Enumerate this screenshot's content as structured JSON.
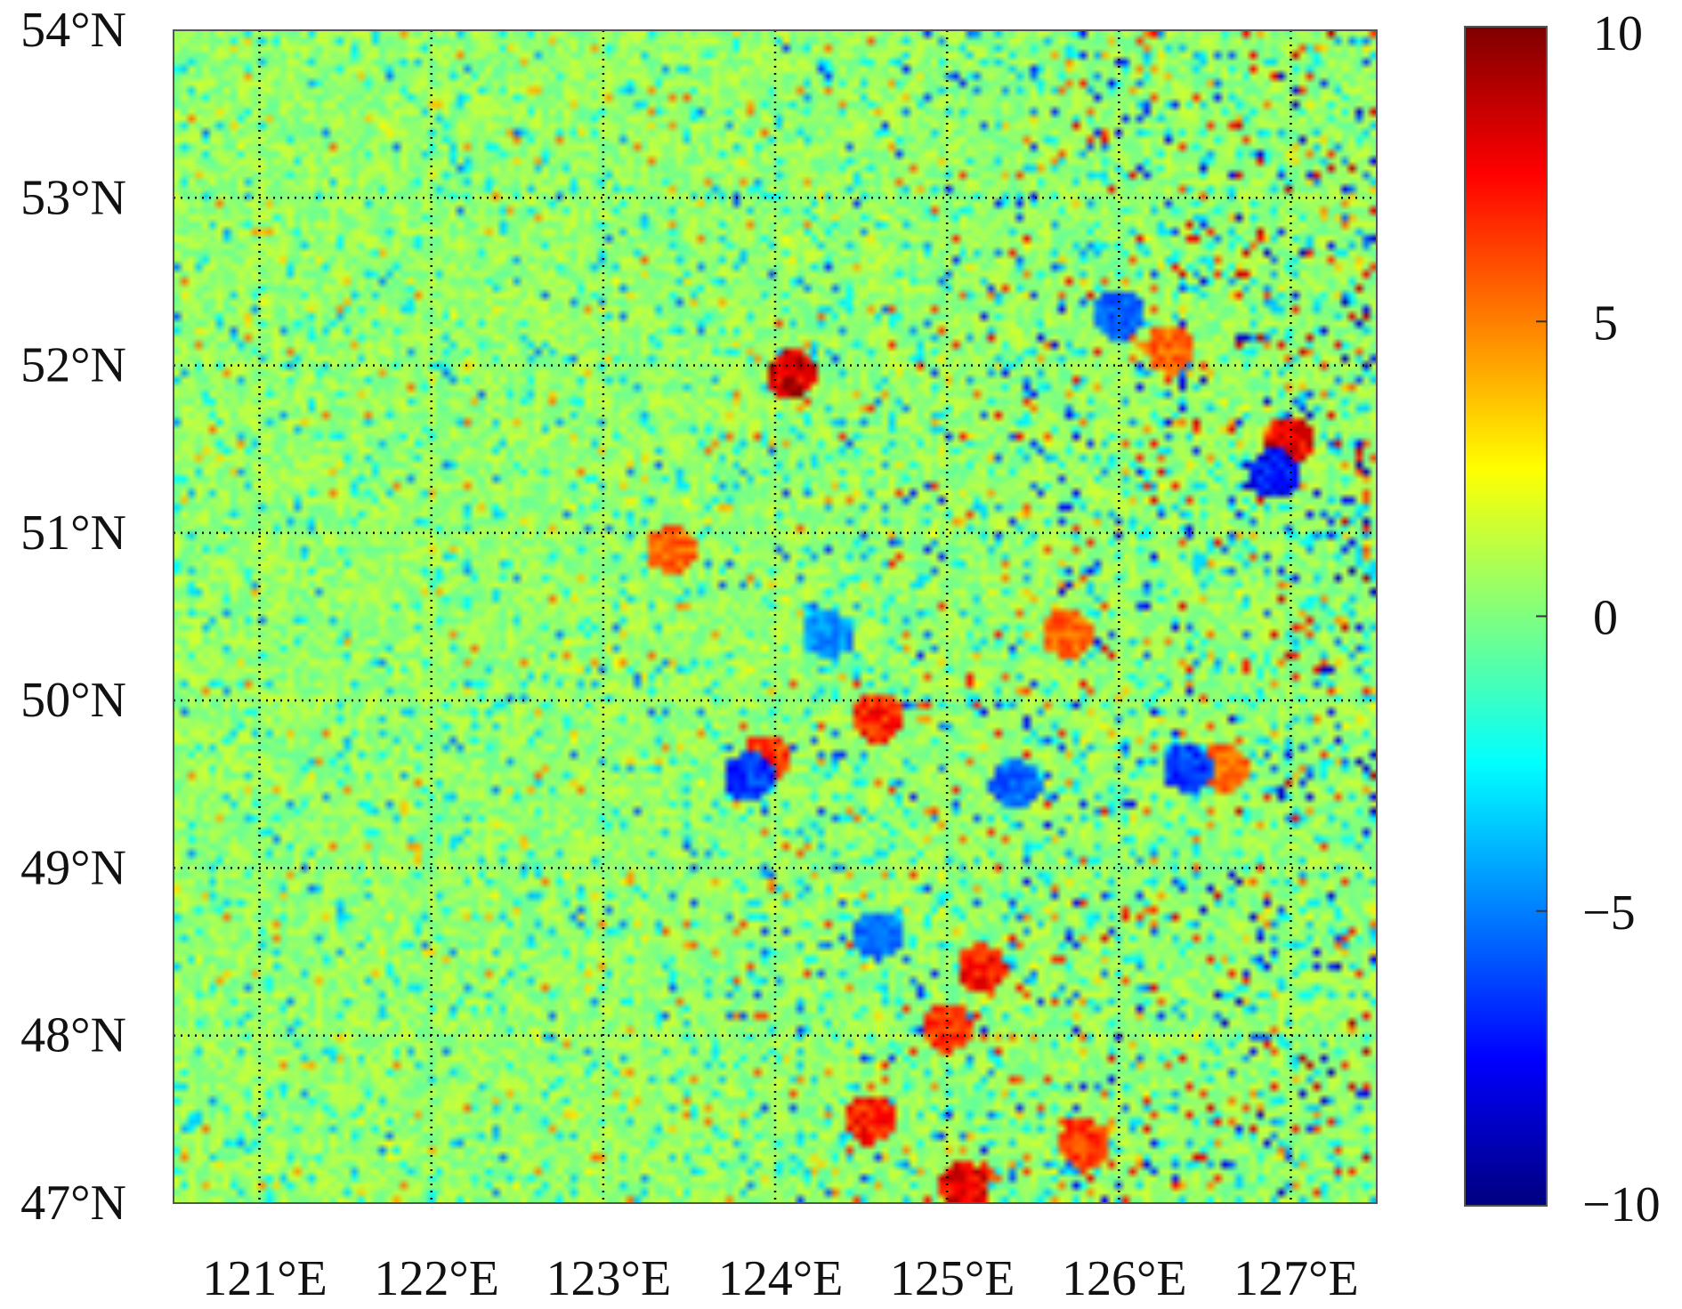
{
  "chart_data": {
    "type": "heatmap",
    "title": "",
    "xlabel": "",
    "ylabel": "",
    "x_ticks": [
      "121°E",
      "122°E",
      "123°E",
      "124°E",
      "125°E",
      "126°E",
      "127°E"
    ],
    "x_tick_values": [
      121,
      122,
      123,
      124,
      125,
      126,
      127
    ],
    "y_ticks": [
      "54°N",
      "53°N",
      "52°N",
      "51°N",
      "50°N",
      "49°N",
      "48°N",
      "47°N"
    ],
    "y_tick_values": [
      54,
      53,
      52,
      51,
      50,
      49,
      48,
      47
    ],
    "xlim": [
      120.5,
      127.5
    ],
    "ylim": [
      47,
      54
    ],
    "grid": "dotted, at every whole degree",
    "colorbar": {
      "ticks": [
        "10",
        "5",
        "0",
        "−5",
        "−10"
      ],
      "tick_values": [
        10,
        5,
        0,
        -5,
        -10
      ],
      "range": [
        -10,
        10
      ],
      "colormap": "jet",
      "placement": "right"
    },
    "value_pattern": {
      "background_value": 0.5,
      "typical_range": [
        -2,
        3
      ],
      "extremes_range": [
        -10,
        10
      ],
      "hotspots": [
        {
          "lon": 127.0,
          "lat": 51.55,
          "value": 8.5
        },
        {
          "lon": 126.9,
          "lat": 51.35,
          "value": -8
        },
        {
          "lon": 124.6,
          "lat": 49.9,
          "value": 7.5
        },
        {
          "lon": 123.95,
          "lat": 49.65,
          "value": 7
        },
        {
          "lon": 123.85,
          "lat": 49.55,
          "value": -7
        },
        {
          "lon": 124.6,
          "lat": 48.6,
          "value": -6
        },
        {
          "lon": 125.2,
          "lat": 48.4,
          "value": 8
        },
        {
          "lon": 125.0,
          "lat": 48.05,
          "value": 7
        },
        {
          "lon": 124.55,
          "lat": 47.5,
          "value": 7.5
        },
        {
          "lon": 125.8,
          "lat": 47.35,
          "value": 7
        },
        {
          "lon": 126.3,
          "lat": 52.1,
          "value": 6
        },
        {
          "lon": 126.6,
          "lat": 49.6,
          "value": 6
        },
        {
          "lon": 126.4,
          "lat": 49.6,
          "value": -7
        },
        {
          "lon": 125.7,
          "lat": 50.4,
          "value": 6
        },
        {
          "lon": 123.4,
          "lat": 50.9,
          "value": 6
        },
        {
          "lon": 124.3,
          "lat": 50.4,
          "value": -5
        },
        {
          "lon": 126.0,
          "lat": 52.3,
          "value": -6
        },
        {
          "lon": 125.1,
          "lat": 47.1,
          "value": 8.5
        },
        {
          "lon": 124.1,
          "lat": 51.95,
          "value": 9
        },
        {
          "lon": 125.4,
          "lat": 49.5,
          "value": -6
        }
      ]
    }
  },
  "colors": {
    "jet_stops": [
      "#00007f",
      "#0000ff",
      "#007fff",
      "#00ffff",
      "#7fff7f",
      "#ffff00",
      "#ff7f00",
      "#ff0000",
      "#7f0000"
    ],
    "grid": "#000000",
    "frame": "#555555"
  }
}
